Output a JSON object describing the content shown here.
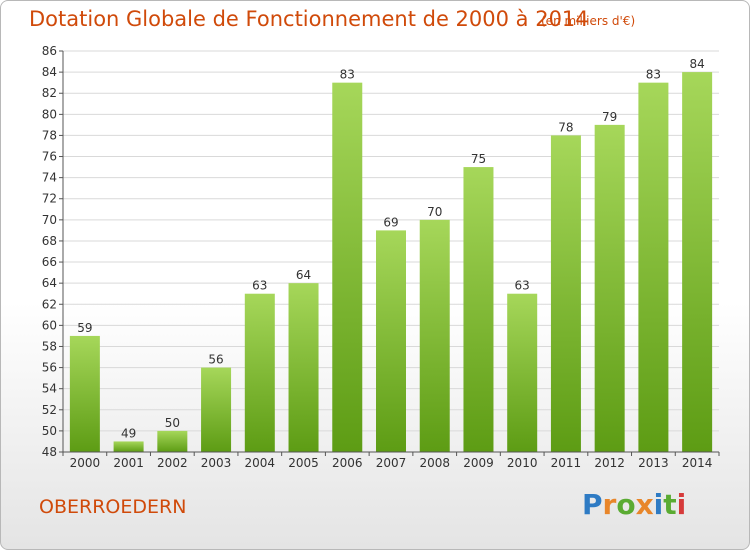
{
  "page": {
    "title": "Dotation Globale de Fonctionnement de 2000 à 2014",
    "unit": "(en milliers d'€)",
    "commune": "OBERROEDERN",
    "brand": {
      "letters": [
        {
          "char": "P",
          "color": "#2e7bc4"
        },
        {
          "char": "r",
          "color": "#e8862a"
        },
        {
          "char": "o",
          "color": "#5aab32"
        },
        {
          "char": "x",
          "color": "#e8862a"
        },
        {
          "char": "i",
          "color": "#2e7bc4"
        },
        {
          "char": "t",
          "color": "#5aab32"
        },
        {
          "char": "i",
          "color": "#d63a3a"
        }
      ]
    }
  },
  "colors": {
    "bar_top": "#a6d75a",
    "bar_bottom": "#5d9c14",
    "grid": "#d9d9d9",
    "axis": "#555555",
    "text": "#333333",
    "accent": "#d04a0a"
  },
  "chart_data": {
    "type": "bar",
    "title": "Dotation Globale de Fonctionnement de 2000 à 2014",
    "categories": [
      "2000",
      "2001",
      "2002",
      "2003",
      "2004",
      "2005",
      "2006",
      "2007",
      "2008",
      "2009",
      "2010",
      "2011",
      "2012",
      "2013",
      "2014"
    ],
    "values": [
      59,
      49,
      50,
      56,
      63,
      64,
      83,
      69,
      70,
      75,
      63,
      78,
      79,
      83,
      84
    ],
    "ylim": [
      48,
      86
    ],
    "yticks": [
      48,
      50,
      52,
      54,
      56,
      58,
      60,
      62,
      64,
      66,
      68,
      70,
      72,
      74,
      76,
      78,
      80,
      82,
      84,
      86
    ],
    "grid": true,
    "data_labels": true
  }
}
